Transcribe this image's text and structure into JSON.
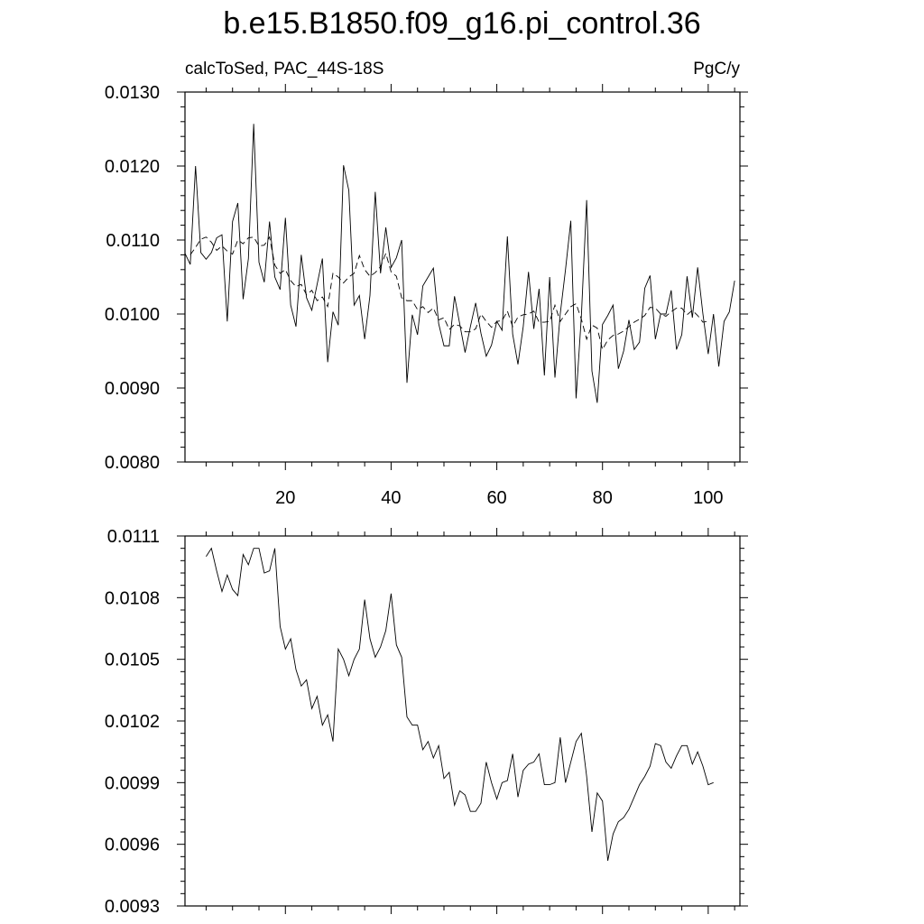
{
  "title": "b.e15.B1850.f09_g16.pi_control.36",
  "chart_data": [
    {
      "type": "line",
      "left_label": "calcToSed, PAC_44S-18S",
      "right_label": "PgC/y",
      "xlim": [
        1,
        106
      ],
      "ylim": [
        0.008,
        0.013
      ],
      "x_ticks": [
        20,
        40,
        60,
        80,
        100
      ],
      "x_tick_labels": [
        "20",
        "40",
        "60",
        "80",
        "100"
      ],
      "y_ticks": [
        0.008,
        0.009,
        0.01,
        0.011,
        0.012,
        0.013
      ],
      "y_tick_labels": [
        "0.0080",
        "0.0090",
        "0.0100",
        "0.0110",
        "0.0120",
        "0.0130"
      ],
      "series": [
        {
          "style": "solid",
          "x_start": 1,
          "values": [
            0.01082,
            0.01067,
            0.012,
            0.01083,
            0.01074,
            0.01083,
            0.01103,
            0.01107,
            0.0099,
            0.01125,
            0.0115,
            0.0102,
            0.01075,
            0.01257,
            0.0107,
            0.01043,
            0.01125,
            0.0105,
            0.01033,
            0.0113,
            0.01012,
            0.00983,
            0.0108,
            0.01022,
            0.01005,
            0.0104,
            0.01075,
            0.00935,
            0.01003,
            0.00985,
            0.01201,
            0.01167,
            0.01012,
            0.01025,
            0.00966,
            0.01025,
            0.01165,
            0.01055,
            0.01117,
            0.01063,
            0.01076,
            0.011,
            0.00907,
            0.00999,
            0.00972,
            0.01038,
            0.0105,
            0.01062,
            0.00987,
            0.00957,
            0.00957,
            0.01024,
            0.00986,
            0.00948,
            0.00983,
            0.01015,
            0.00974,
            0.00943,
            0.00958,
            0.0099,
            0.00978,
            0.01105,
            0.00973,
            0.00932,
            0.00983,
            0.01057,
            0.0098,
            0.01034,
            0.00917,
            0.0105,
            0.00914,
            0.01,
            0.0106,
            0.01126,
            0.00886,
            0.00997,
            0.01154,
            0.00923,
            0.0088,
            0.00986,
            0.00998,
            0.01012,
            0.00926,
            0.0095,
            0.00992,
            0.00952,
            0.00962,
            0.01035,
            0.01052,
            0.00966,
            0.01,
            0.01,
            0.01032,
            0.00952,
            0.00972,
            0.01051,
            0.00995,
            0.01063,
            0.01,
            0.00946,
            0.01,
            0.00929,
            0.0099,
            0.01003,
            0.01045
          ]
        },
        {
          "style": "dashed",
          "x_start": 2,
          "values": [
            0.0108,
            0.0109,
            0.01101,
            0.01104,
            0.01097,
            0.01086,
            0.01092,
            0.01085,
            0.01081,
            0.011,
            0.01095,
            0.01103,
            0.01104,
            0.01092,
            0.01093,
            0.01104,
            0.01066,
            0.01055,
            0.0106,
            0.01045,
            0.01037,
            0.0104,
            0.01026,
            0.01032,
            0.01018,
            0.01023,
            0.0101,
            0.01055,
            0.0105,
            0.01042,
            0.0105,
            0.01055,
            0.01079,
            0.0106,
            0.01051,
            0.01056,
            0.01064,
            0.01082,
            0.01057,
            0.01051,
            0.01022,
            0.01018,
            0.01018,
            0.01006,
            0.0101,
            0.01002,
            0.01008,
            0.00992,
            0.00995,
            0.00979,
            0.00986,
            0.00984,
            0.00976,
            0.00976,
            0.0098,
            0.01,
            0.0099,
            0.00982,
            0.0099,
            0.00991,
            0.01004,
            0.00983,
            0.00996,
            0.00999,
            0.01,
            0.01004,
            0.00989,
            0.00989,
            0.0099,
            0.01012,
            0.0099,
            0.01,
            0.0101,
            0.01014,
            0.00993,
            0.00966,
            0.00985,
            0.00981,
            0.00952,
            0.00965,
            0.00971,
            0.00973,
            0.00977,
            0.00983,
            0.00989,
            0.00993,
            0.00998,
            0.01009,
            0.01008,
            0.01,
            0.00997,
            0.01003,
            0.01008,
            0.01008,
            0.00999,
            0.01005,
            0.00998,
            0.00989,
            0.0099
          ]
        }
      ]
    },
    {
      "type": "line",
      "xlim": [
        1,
        106
      ],
      "ylim": [
        0.0093,
        0.0111
      ],
      "x_ticks": [
        20,
        40,
        60,
        80,
        100
      ],
      "y_ticks": [
        0.0093,
        0.0096,
        0.0099,
        0.0102,
        0.0105,
        0.0108,
        0.0111
      ],
      "y_tick_labels": [
        "0.0093",
        "0.0096",
        "0.0099",
        "0.0102",
        "0.0105",
        "0.0108",
        "0.0111"
      ],
      "series": [
        {
          "style": "solid",
          "x_start": 5,
          "values": [
            0.011,
            0.01104,
            0.01093,
            0.01083,
            0.01091,
            0.01084,
            0.01081,
            0.01101,
            0.01096,
            0.01104,
            0.01104,
            0.01092,
            0.01093,
            0.01104,
            0.01066,
            0.01055,
            0.0106,
            0.01045,
            0.01037,
            0.0104,
            0.01026,
            0.01032,
            0.01018,
            0.01023,
            0.0101,
            0.01055,
            0.0105,
            0.01042,
            0.0105,
            0.01055,
            0.01079,
            0.0106,
            0.01051,
            0.01056,
            0.01064,
            0.01082,
            0.01057,
            0.01051,
            0.01022,
            0.01018,
            0.01018,
            0.01006,
            0.0101,
            0.01002,
            0.01008,
            0.00992,
            0.00995,
            0.00979,
            0.00986,
            0.00984,
            0.00976,
            0.00976,
            0.0098,
            0.01,
            0.0099,
            0.00982,
            0.0099,
            0.00991,
            0.01004,
            0.00983,
            0.00996,
            0.00999,
            0.01,
            0.01004,
            0.00989,
            0.00989,
            0.0099,
            0.01012,
            0.0099,
            0.01,
            0.0101,
            0.01014,
            0.00993,
            0.00966,
            0.00985,
            0.00981,
            0.00952,
            0.00965,
            0.00971,
            0.00973,
            0.00977,
            0.00983,
            0.00989,
            0.00993,
            0.00998,
            0.01009,
            0.01008,
            0.01,
            0.00997,
            0.01003,
            0.01008,
            0.01008,
            0.00999,
            0.01005,
            0.00998,
            0.00989,
            0.0099
          ]
        }
      ]
    }
  ]
}
